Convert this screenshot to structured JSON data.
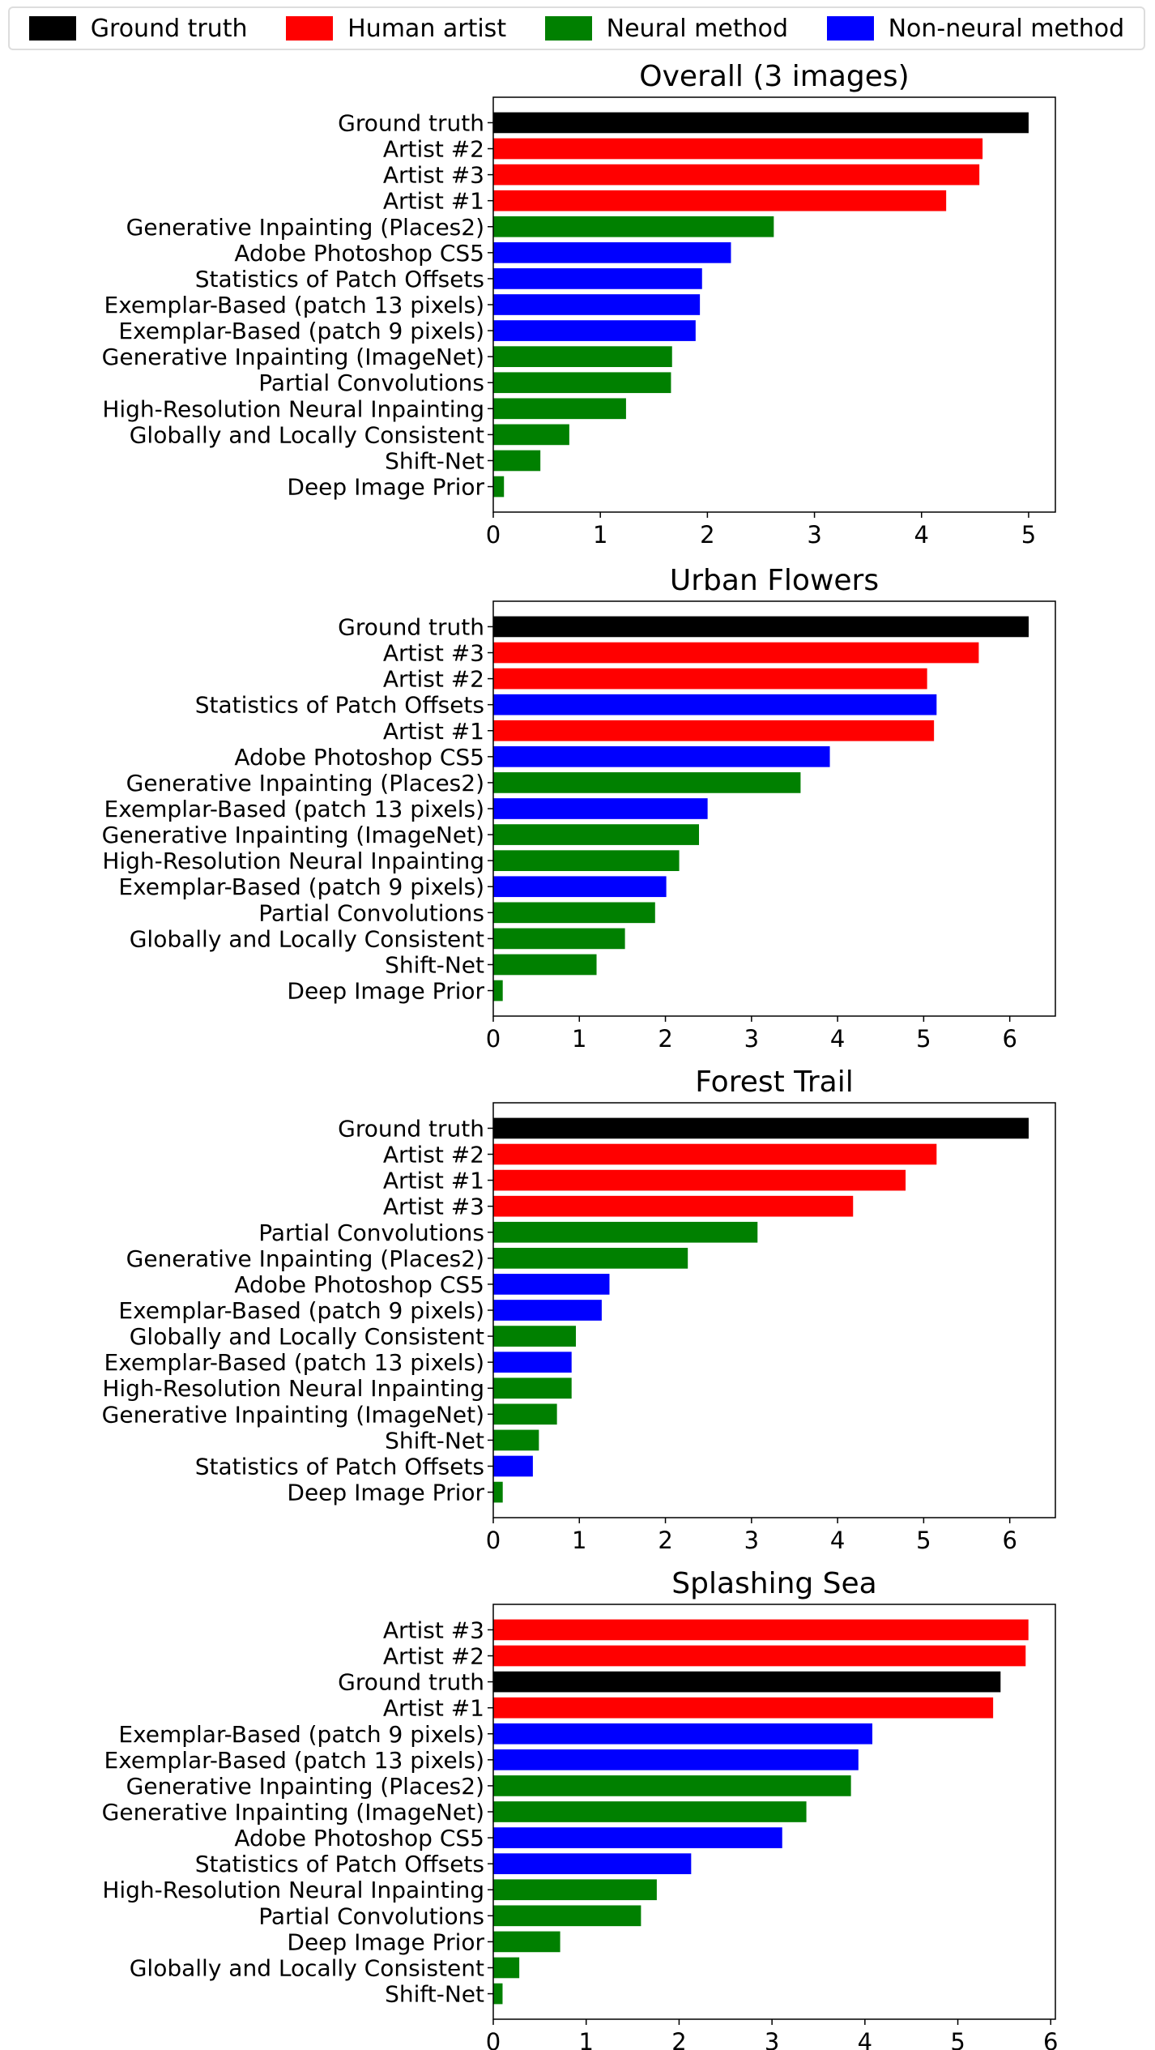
{
  "legend": {
    "placement": "top",
    "items": [
      {
        "label": "Ground truth",
        "color": "#000000"
      },
      {
        "label": "Human artist",
        "color": "#ff0000"
      },
      {
        "label": "Neural method",
        "color": "#008000"
      },
      {
        "label": "Non-neural method",
        "color": "#0000ff"
      }
    ]
  },
  "chart_data": [
    {
      "type": "bar",
      "orientation": "horizontal",
      "title": "Overall (3 images)",
      "xlim": [
        0,
        5.25
      ],
      "xticks": [
        "0",
        "1",
        "2",
        "3",
        "4",
        "5"
      ],
      "grid": false,
      "categories": [
        "Ground truth",
        "Artist #2",
        "Artist #3",
        "Artist #1",
        "Generative Inpainting (Places2)",
        "Adobe Photoshop CS5",
        "Statistics of Patch Offsets",
        "Exemplar-Based (patch 13 pixels)",
        "Exemplar-Based (patch 9 pixels)",
        "Generative Inpainting (ImageNet)",
        "Partial Convolutions",
        "High-Resolution Neural Inpainting",
        "Globally and Locally Consistent",
        "Shift-Net",
        "Deep Image Prior"
      ],
      "groups": [
        "Ground truth",
        "Human artist",
        "Human artist",
        "Human artist",
        "Neural method",
        "Non-neural method",
        "Non-neural method",
        "Non-neural method",
        "Non-neural method",
        "Neural method",
        "Neural method",
        "Neural method",
        "Neural method",
        "Neural method",
        "Neural method"
      ],
      "values": [
        5.0,
        4.57,
        4.54,
        4.23,
        2.62,
        2.22,
        1.95,
        1.93,
        1.89,
        1.67,
        1.66,
        1.24,
        0.71,
        0.44,
        0.1
      ]
    },
    {
      "type": "bar",
      "orientation": "horizontal",
      "title": "Urban Flowers",
      "xlim": [
        0,
        6.53
      ],
      "xticks": [
        "0",
        "1",
        "2",
        "3",
        "4",
        "5",
        "6"
      ],
      "grid": false,
      "categories": [
        "Ground truth",
        "Artist #3",
        "Artist #2",
        "Statistics of Patch Offsets",
        "Artist #1",
        "Adobe Photoshop CS5",
        "Generative Inpainting (Places2)",
        "Exemplar-Based (patch 13 pixels)",
        "Generative Inpainting (ImageNet)",
        "High-Resolution Neural Inpainting",
        "Exemplar-Based (patch 9 pixels)",
        "Partial Convolutions",
        "Globally and Locally Consistent",
        "Shift-Net",
        "Deep Image Prior"
      ],
      "groups": [
        "Ground truth",
        "Human artist",
        "Human artist",
        "Non-neural method",
        "Human artist",
        "Non-neural method",
        "Neural method",
        "Non-neural method",
        "Neural method",
        "Neural method",
        "Non-neural method",
        "Neural method",
        "Neural method",
        "Neural method",
        "Neural method"
      ],
      "values": [
        6.22,
        5.64,
        5.04,
        5.15,
        5.12,
        3.91,
        3.57,
        2.49,
        2.39,
        2.16,
        2.01,
        1.88,
        1.53,
        1.2,
        0.11
      ]
    },
    {
      "type": "bar",
      "orientation": "horizontal",
      "title": "Forest Trail",
      "xlim": [
        0,
        6.53
      ],
      "xticks": [
        "0",
        "1",
        "2",
        "3",
        "4",
        "5",
        "6"
      ],
      "grid": false,
      "categories": [
        "Ground truth",
        "Artist #2",
        "Artist #1",
        "Artist #3",
        "Partial Convolutions",
        "Generative Inpainting (Places2)",
        "Adobe Photoshop CS5",
        "Exemplar-Based (patch 9 pixels)",
        "Globally and Locally Consistent",
        "Exemplar-Based (patch 13 pixels)",
        "High-Resolution Neural Inpainting",
        "Generative Inpainting (ImageNet)",
        "Shift-Net",
        "Statistics of Patch Offsets",
        "Deep Image Prior"
      ],
      "groups": [
        "Ground truth",
        "Human artist",
        "Human artist",
        "Human artist",
        "Neural method",
        "Neural method",
        "Non-neural method",
        "Non-neural method",
        "Neural method",
        "Non-neural method",
        "Neural method",
        "Neural method",
        "Neural method",
        "Non-neural method",
        "Neural method"
      ],
      "values": [
        6.22,
        5.15,
        4.79,
        4.18,
        3.07,
        2.26,
        1.35,
        1.26,
        0.96,
        0.91,
        0.91,
        0.74,
        0.53,
        0.46,
        0.11
      ]
    },
    {
      "type": "bar",
      "orientation": "horizontal",
      "title": "Splashing Sea",
      "xlim": [
        0,
        6.05
      ],
      "xticks": [
        "0",
        "1",
        "2",
        "3",
        "4",
        "5",
        "6"
      ],
      "grid": false,
      "categories": [
        "Artist #3",
        "Artist #2",
        "Ground truth",
        "Artist #1",
        "Exemplar-Based (patch 9 pixels)",
        "Exemplar-Based (patch 13 pixels)",
        "Generative Inpainting (Places2)",
        "Generative Inpainting (ImageNet)",
        "Adobe Photoshop CS5",
        "Statistics of Patch Offsets",
        "High-Resolution Neural Inpainting",
        "Partial Convolutions",
        "Deep Image Prior",
        "Globally and Locally Consistent",
        "Shift-Net"
      ],
      "groups": [
        "Human artist",
        "Human artist",
        "Ground truth",
        "Human artist",
        "Non-neural method",
        "Non-neural method",
        "Neural method",
        "Neural method",
        "Non-neural method",
        "Non-neural method",
        "Neural method",
        "Neural method",
        "Neural method",
        "Neural method",
        "Neural method"
      ],
      "values": [
        5.76,
        5.73,
        5.46,
        5.38,
        4.08,
        3.93,
        3.85,
        3.37,
        3.11,
        2.13,
        1.76,
        1.59,
        0.72,
        0.28,
        0.1
      ]
    }
  ]
}
